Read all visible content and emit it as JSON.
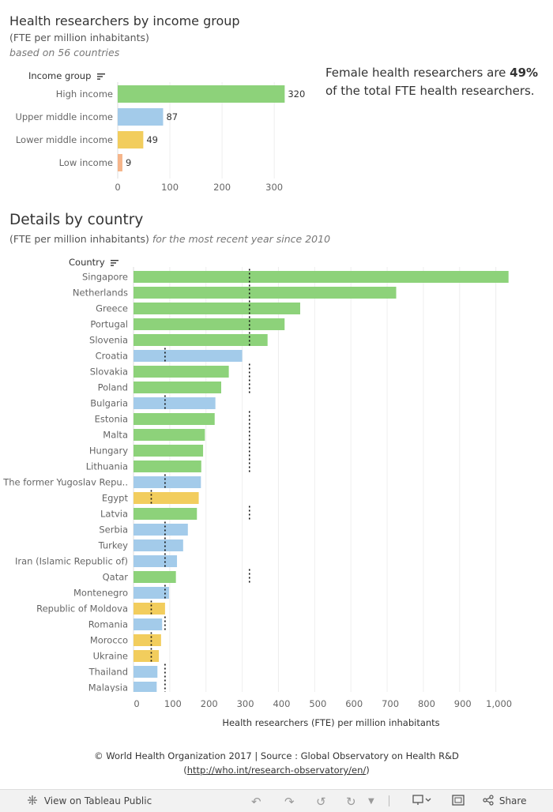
{
  "top": {
    "title": "Health researchers by income group",
    "subtitle": "(FTE per million inhabitants)",
    "note": "based on 56 countries",
    "female_text_pre": "Female health researchers are ",
    "female_pct": "49%",
    "female_text_post": "of the total FTE health researchers."
  },
  "details": {
    "title": "Details by country",
    "subtitle": "(FTE per million inhabitants)",
    "subtitle_italic": "for the most recent year since 2010"
  },
  "footer": {
    "line1": "© World Health Organization 2017 | Source : Global Observatory on Health R&D",
    "link": "http://who.int/research-observatory/en/"
  },
  "toolbar": {
    "view_label": "View on Tableau Public",
    "share_label": "Share"
  },
  "colors": {
    "high": "#8dd27a",
    "upper_middle": "#a3cbea",
    "lower_middle": "#f2cd5d",
    "low": "#f6b58a"
  },
  "chart_data": [
    {
      "type": "bar",
      "orientation": "horizontal",
      "header": "Income group",
      "categories": [
        "High income",
        "Upper middle income",
        "Lower middle income",
        "Low income"
      ],
      "values": [
        320,
        87,
        49,
        9
      ],
      "data_labels": [
        "320",
        "87",
        "49",
        "9"
      ],
      "ticks": [
        "0",
        "100",
        "200",
        "300"
      ],
      "xlim": [
        0,
        380
      ]
    },
    {
      "type": "bar",
      "orientation": "horizontal",
      "header": "Country",
      "xlabel": "Health researchers (FTE) per million inhabitants",
      "ticks": [
        "0",
        "100",
        "200",
        "300",
        "400",
        "500",
        "600",
        "700",
        "800",
        "900",
        "1,000"
      ],
      "xlim": [
        0,
        1040
      ],
      "reference_lines_by_group": {
        "high": 320,
        "upper_middle": 87,
        "lower_middle": 49
      },
      "countries": [
        {
          "name": "Singapore",
          "value": 1035,
          "group": "high"
        },
        {
          "name": "Netherlands",
          "value": 725,
          "group": "high"
        },
        {
          "name": "Greece",
          "value": 460,
          "group": "high"
        },
        {
          "name": "Portugal",
          "value": 417,
          "group": "high"
        },
        {
          "name": "Slovenia",
          "value": 370,
          "group": "high"
        },
        {
          "name": "Croatia",
          "value": 300,
          "group": "upper_middle"
        },
        {
          "name": "Slovakia",
          "value": 263,
          "group": "high"
        },
        {
          "name": "Poland",
          "value": 242,
          "group": "high"
        },
        {
          "name": "Bulgaria",
          "value": 226,
          "group": "upper_middle"
        },
        {
          "name": "Estonia",
          "value": 224,
          "group": "high"
        },
        {
          "name": "Malta",
          "value": 197,
          "group": "high"
        },
        {
          "name": "Hungary",
          "value": 192,
          "group": "high"
        },
        {
          "name": "Lithuania",
          "value": 187,
          "group": "high"
        },
        {
          "name": "The former Yugoslav Repu..",
          "value": 186,
          "group": "upper_middle"
        },
        {
          "name": "Egypt",
          "value": 180,
          "group": "lower_middle"
        },
        {
          "name": "Latvia",
          "value": 175,
          "group": "high"
        },
        {
          "name": "Serbia",
          "value": 150,
          "group": "upper_middle"
        },
        {
          "name": "Turkey",
          "value": 137,
          "group": "upper_middle"
        },
        {
          "name": "Iran (Islamic Republic of)",
          "value": 120,
          "group": "upper_middle"
        },
        {
          "name": "Qatar",
          "value": 117,
          "group": "high"
        },
        {
          "name": "Montenegro",
          "value": 98,
          "group": "upper_middle"
        },
        {
          "name": "Republic of Moldova",
          "value": 87,
          "group": "lower_middle"
        },
        {
          "name": "Romania",
          "value": 79,
          "group": "upper_middle"
        },
        {
          "name": "Morocco",
          "value": 76,
          "group": "lower_middle"
        },
        {
          "name": "Ukraine",
          "value": 70,
          "group": "lower_middle"
        },
        {
          "name": "Thailand",
          "value": 66,
          "group": "upper_middle"
        },
        {
          "name": "Malaysia",
          "value": 64,
          "group": "upper_middle"
        }
      ]
    }
  ]
}
